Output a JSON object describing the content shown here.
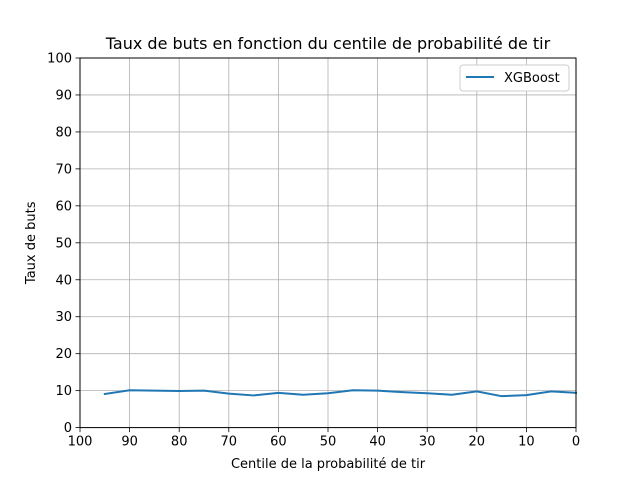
{
  "chart_data": {
    "type": "line",
    "title": "Taux de buts en fonction du centile de probabilité de tir",
    "xlabel": "Centile de la probabilité de tir",
    "ylabel": "Taux de buts",
    "xlim": [
      100,
      0
    ],
    "ylim": [
      0,
      100
    ],
    "x_ticks": [
      100,
      90,
      80,
      70,
      60,
      50,
      40,
      30,
      20,
      10,
      0
    ],
    "y_ticks": [
      0,
      10,
      20,
      30,
      40,
      50,
      60,
      70,
      80,
      90,
      100
    ],
    "x_tick_labels": [
      "100",
      "90",
      "80",
      "70",
      "60",
      "50",
      "40",
      "30",
      "20",
      "10",
      "0"
    ],
    "y_tick_labels": [
      "0",
      "10",
      "20",
      "30",
      "40",
      "50",
      "60",
      "70",
      "80",
      "90",
      "100"
    ],
    "grid": true,
    "legend_position": "top-right",
    "series": [
      {
        "name": "XGBoost",
        "color": "#1f77b4",
        "x": [
          95,
          90,
          85,
          80,
          75,
          70,
          65,
          60,
          55,
          50,
          45,
          40,
          35,
          30,
          25,
          20,
          15,
          10,
          5,
          0
        ],
        "y": [
          9.1,
          10.1,
          10.0,
          9.9,
          10.0,
          9.2,
          8.7,
          9.4,
          8.9,
          9.3,
          10.1,
          10.0,
          9.6,
          9.3,
          8.9,
          9.8,
          8.5,
          8.8,
          9.8,
          9.4
        ]
      }
    ]
  }
}
